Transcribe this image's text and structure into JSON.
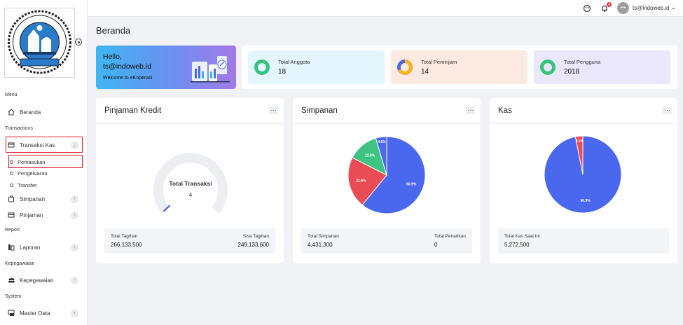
{
  "sidebar": {
    "logo_text": "KOPERASI BSKA AL AZHAR HAMKA",
    "sections": {
      "menu": "Menu",
      "transactions": "Transactions",
      "report": "Report",
      "kepegawaian": "Kepegawaian",
      "system": "System"
    },
    "items": {
      "beranda": "Beranda",
      "transaksi_kas": "Transaksi Kas",
      "pemasukan": "Pemasukan",
      "pengeluaran": "Pengeluaran",
      "transfer": "Transfer",
      "simpanan": "Simpanan",
      "pinjaman": "Pinjaman",
      "laporan": "Laporan",
      "kepegawaian": "Kepegawaian",
      "master_data": "Master Data"
    }
  },
  "topbar": {
    "notification_count": "4",
    "avatar_text": "•••",
    "user_email": "ts@indoweb.id"
  },
  "main": {
    "page_title": "Beranda",
    "hello": {
      "greeting": "Hello,",
      "email": "ts@indoweb.id",
      "subtitle": "Welcome to eKoperasi"
    },
    "stats": [
      {
        "label": "Total Anggota",
        "value": "18",
        "bg": "#e3f6fd",
        "ring": "#36c27a"
      },
      {
        "label": "Total Peminjam",
        "value": "14",
        "bg": "#fce9e1",
        "ring": "#f4b41a"
      },
      {
        "label": "Total Pengguna",
        "value": "2018",
        "bg": "#ebe7fb",
        "ring": "#36c27a"
      }
    ]
  },
  "cards": {
    "pinjaman": {
      "title": "Pinjaman Kredit",
      "gauge_label": "Total Transaksi",
      "gauge_value": "4",
      "foot_left_label": "Total Tagihan",
      "foot_left_value": "266,133,500",
      "foot_right_label": "Sisa Tagihan",
      "foot_right_value": "249,133,600"
    },
    "simpanan": {
      "title": "Simpanan",
      "foot_left_label": "Total Simpanan",
      "foot_left_value": "4,431,300",
      "foot_right_label": "Total Penarikan",
      "foot_right_value": "0"
    },
    "kas": {
      "title": "Kas",
      "foot_left_label": "Total Kas Saat Ini",
      "foot_left_value": "5,272,500"
    }
  },
  "chart_data": [
    {
      "type": "pie",
      "chart": "simpanan",
      "values": [
        60.9,
        21.6,
        12.9,
        4.6
      ],
      "labels": [
        "60.9%",
        "21.6%",
        "12.9%",
        "4.6%"
      ],
      "colors": [
        "#4a68ee",
        "#e94c55",
        "#3ec383",
        "#4a68ee"
      ]
    },
    {
      "type": "pie",
      "chart": "kas",
      "values": [
        96.9,
        3.1
      ],
      "labels": [
        "96.9%",
        "3.1%"
      ],
      "colors": [
        "#4a68ee",
        "#e94c55"
      ]
    }
  ]
}
